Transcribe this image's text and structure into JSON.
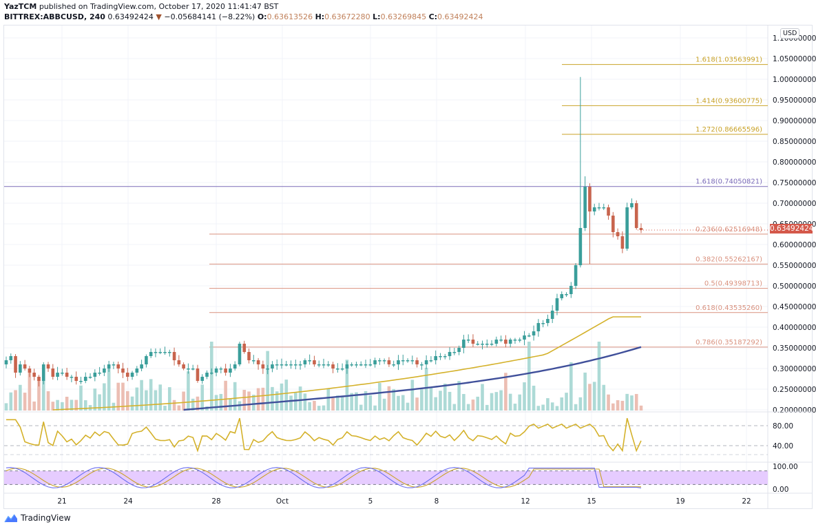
{
  "header": {
    "author": "YazTCM",
    "published_text": "published on TradingView.com, October 17, 2020 11:41:47 BST",
    "symbol": "BITTREX:ABBCUSD, 240",
    "last": "0.63492424",
    "change_arrow": "▼",
    "change": "−0.05684141 (−8.22%)",
    "o_label": "O:",
    "o": "0.63613526",
    "h_label": "H:",
    "h": "0.63672280",
    "l_label": "L:",
    "l": "0.63269845",
    "c_label": "C:",
    "c": "0.63492424"
  },
  "price_axis": {
    "currency": "USD",
    "current_price": "0.63492424",
    "ticks": [
      "1.10000000",
      "1.05000000",
      "1.00000000",
      "0.95000000",
      "0.90000000",
      "0.85000000",
      "0.80000000",
      "0.75000000",
      "0.70000000",
      "0.65000000",
      "0.60000000",
      "0.55000000",
      "0.50000000",
      "0.45000000",
      "0.40000000",
      "0.35000000",
      "0.30000000",
      "0.25000000",
      "0.20000000"
    ]
  },
  "rsi_axis": {
    "ticks": [
      "80.00",
      "40.00"
    ]
  },
  "stoch_axis": {
    "ticks": [
      "100.00",
      "0.00"
    ]
  },
  "time_axis": {
    "labels": [
      {
        "text": "21",
        "x": 90
      },
      {
        "text": "24",
        "x": 186
      },
      {
        "text": "28",
        "x": 314
      },
      {
        "text": "Oct",
        "x": 410
      },
      {
        "text": "5",
        "x": 538
      },
      {
        "text": "8",
        "x": 634
      },
      {
        "text": "12",
        "x": 763
      },
      {
        "text": "15",
        "x": 859
      },
      {
        "text": "19",
        "x": 988
      },
      {
        "text": "22",
        "x": 1084
      }
    ]
  },
  "footer": {
    "brand": "TradingView"
  },
  "colors": {
    "up": "#3a9e9a",
    "down": "#c8644d",
    "fib_ext": "#c9a227",
    "fib_key": "#7b6bb8",
    "fib_ret": "#d9917e",
    "ma_fast": "#d4b12a",
    "ma_slow": "#3f4f9a",
    "rsi": "#d4b12a",
    "stoch_band": "#e6ccff",
    "stoch_k": "#6b6ef0",
    "stoch_d": "#c9a227"
  },
  "chart_data": {
    "type": "candlestick",
    "title": "BITTREX:ABBCUSD, 240",
    "xlabel": "",
    "ylabel": "USD",
    "ylim": [
      0.2,
      1.1
    ],
    "grid": true,
    "x_ticks": [
      "21",
      "24",
      "28",
      "Oct",
      "5",
      "8",
      "12",
      "15",
      "19",
      "22"
    ],
    "fib_levels": [
      {
        "label": "1.618(1.03563991)",
        "ratio": 1.618,
        "price": 1.03563991,
        "kind": "ext"
      },
      {
        "label": "1.414(0.93600775)",
        "ratio": 1.414,
        "price": 0.93600775,
        "kind": "ext"
      },
      {
        "label": "1.272(0.86665596)",
        "ratio": 1.272,
        "price": 0.86665596,
        "kind": "ext"
      },
      {
        "label": "1.618(0.74050821)",
        "ratio": 1.618,
        "price": 0.74050821,
        "kind": "key"
      },
      {
        "label": "0.236(0.62516948)",
        "ratio": 0.236,
        "price": 0.62516948,
        "kind": "ret"
      },
      {
        "label": "0.382(0.55262167)",
        "ratio": 0.382,
        "price": 0.55262167,
        "kind": "ret"
      },
      {
        "label": "0.5(0.49398713)",
        "ratio": 0.5,
        "price": 0.49398713,
        "kind": "ret"
      },
      {
        "label": "0.618(0.43535260)",
        "ratio": 0.618,
        "price": 0.4353526,
        "kind": "ret"
      },
      {
        "label": "0.786(0.35187292)",
        "ratio": 0.786,
        "price": 0.35187292,
        "kind": "ret"
      }
    ],
    "closes_approx": [
      0.32,
      0.33,
      0.29,
      0.31,
      0.3,
      0.29,
      0.28,
      0.27,
      0.31,
      0.3,
      0.28,
      0.29,
      0.29,
      0.28,
      0.28,
      0.27,
      0.27,
      0.28,
      0.28,
      0.29,
      0.29,
      0.3,
      0.31,
      0.31,
      0.3,
      0.29,
      0.28,
      0.29,
      0.3,
      0.31,
      0.33,
      0.34,
      0.34,
      0.34,
      0.34,
      0.34,
      0.32,
      0.31,
      0.3,
      0.3,
      0.3,
      0.27,
      0.28,
      0.29,
      0.29,
      0.3,
      0.3,
      0.29,
      0.3,
      0.31,
      0.36,
      0.34,
      0.32,
      0.32,
      0.31,
      0.3,
      0.3,
      0.31,
      0.31,
      0.31,
      0.31,
      0.31,
      0.31,
      0.31,
      0.32,
      0.32,
      0.31,
      0.31,
      0.31,
      0.31,
      0.3,
      0.3,
      0.3,
      0.31,
      0.31,
      0.31,
      0.31,
      0.31,
      0.31,
      0.32,
      0.32,
      0.32,
      0.31,
      0.31,
      0.32,
      0.32,
      0.32,
      0.32,
      0.31,
      0.31,
      0.32,
      0.32,
      0.33,
      0.33,
      0.33,
      0.34,
      0.34,
      0.35,
      0.37,
      0.37,
      0.36,
      0.36,
      0.36,
      0.36,
      0.36,
      0.37,
      0.37,
      0.36,
      0.37,
      0.37,
      0.37,
      0.38,
      0.38,
      0.39,
      0.41,
      0.41,
      0.42,
      0.44,
      0.47,
      0.48,
      0.48,
      0.5,
      0.55,
      0.64,
      0.74,
      0.68,
      0.69,
      0.69,
      0.69,
      0.67,
      0.63,
      0.62,
      0.59,
      0.69,
      0.7,
      0.64,
      0.635
    ],
    "ma_fast_end": 0.425,
    "ma_slow_end": 0.352,
    "rsi_last": 50,
    "stoch_last": 5,
    "last_price": 0.63492424
  }
}
